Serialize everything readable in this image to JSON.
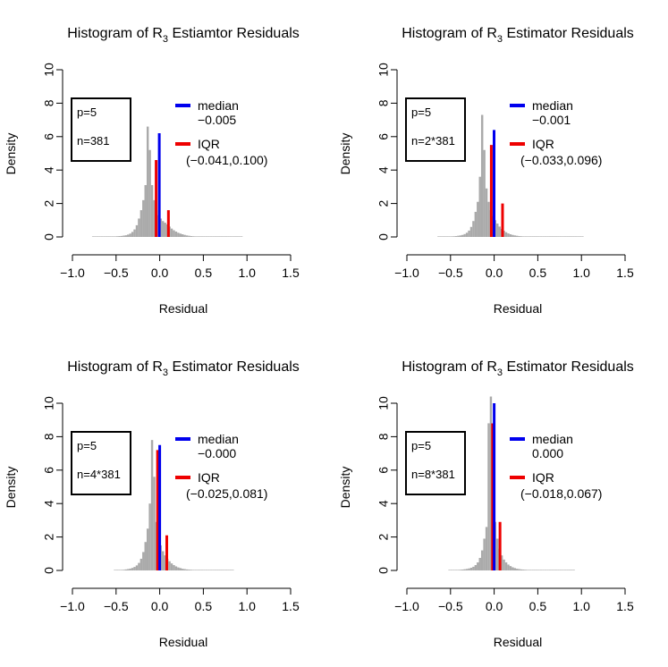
{
  "chart_data": [
    {
      "type": "histogram",
      "title_main": "Histogram of R",
      "title_sub": "3",
      "title_rest": " Estiamtor Residuals",
      "xlabel": "Residual",
      "ylabel": "Density",
      "xlim": [
        -1.0,
        1.5
      ],
      "ylim": [
        0,
        10
      ],
      "x_ticks": [
        "−1.0",
        "−0.5",
        "0.0",
        "0.5",
        "1.0",
        "1.5"
      ],
      "y_ticks": [
        "0",
        "2",
        "4",
        "6",
        "8",
        "10"
      ],
      "bar_color": "#aaaaaa",
      "bin_width": 0.025,
      "bins_start": -0.775,
      "densities": [
        0.01,
        0.01,
        0.01,
        0.01,
        0.01,
        0.01,
        0.01,
        0.02,
        0.02,
        0.02,
        0.03,
        0.04,
        0.05,
        0.06,
        0.08,
        0.1,
        0.14,
        0.2,
        0.3,
        0.45,
        0.7,
        1.1,
        1.6,
        2.2,
        3.1,
        6.6,
        5.2,
        3.1,
        2.2,
        1.6,
        1.3,
        1.1,
        0.95,
        0.85,
        0.75,
        0.62,
        0.5,
        0.4,
        0.32,
        0.25,
        0.2,
        0.16,
        0.12,
        0.09,
        0.07,
        0.05,
        0.04,
        0.03,
        0.02,
        0.02,
        0.01,
        0.01,
        0.01,
        0.01,
        0.01,
        0.01,
        0.01,
        0.01,
        0.01,
        0.01,
        0.01,
        0.01,
        0.01,
        0.01,
        0.01,
        0.01,
        0.01,
        0.01,
        0.01
      ],
      "median": {
        "value": -0.005,
        "height": 6.2,
        "color": "#0000ee"
      },
      "iqr": {
        "low": -0.041,
        "high": 0.1,
        "low_height": 4.6,
        "high_height": 1.6,
        "color": "#ee0000"
      },
      "box": {
        "p_text": "p=5",
        "n_text": "n=381"
      },
      "legend": {
        "median_label": "median",
        "median_value": "−0.005",
        "iqr_label": "IQR",
        "iqr_value": "(−0.041,0.100)"
      }
    },
    {
      "type": "histogram",
      "title_main": "Histogram of R",
      "title_sub": "3",
      "title_rest": " Estimator Residuals",
      "xlabel": "Residual",
      "ylabel": "Density",
      "xlim": [
        -1.0,
        1.5
      ],
      "ylim": [
        0,
        10
      ],
      "x_ticks": [
        "−1.0",
        "−0.5",
        "0.0",
        "0.5",
        "1.0",
        "1.5"
      ],
      "y_ticks": [
        "0",
        "2",
        "4",
        "6",
        "8",
        "10"
      ],
      "bar_color": "#aaaaaa",
      "bin_width": 0.025,
      "bins_start": -0.65,
      "densities": [
        0.01,
        0.01,
        0.01,
        0.01,
        0.02,
        0.02,
        0.03,
        0.04,
        0.05,
        0.07,
        0.09,
        0.12,
        0.17,
        0.25,
        0.38,
        0.6,
        0.95,
        1.5,
        2.1,
        3.6,
        7.3,
        5.2,
        2.9,
        2.1,
        1.6,
        1.25,
        1.0,
        0.8,
        0.62,
        0.48,
        0.37,
        0.28,
        0.21,
        0.16,
        0.12,
        0.09,
        0.07,
        0.05,
        0.04,
        0.03,
        0.02,
        0.02,
        0.02,
        0.01,
        0.01,
        0.01,
        0.01,
        0.01,
        0.01,
        0.01,
        0.01,
        0.01,
        0.01,
        0.01,
        0.01,
        0.01,
        0.01,
        0.01,
        0.01,
        0.01,
        0.01,
        0.01,
        0.01,
        0.01,
        0.01,
        0.01,
        0.01
      ],
      "median": {
        "value": -0.001,
        "height": 6.4,
        "color": "#0000ee"
      },
      "iqr": {
        "low": -0.033,
        "high": 0.096,
        "low_height": 5.5,
        "high_height": 2.0,
        "color": "#ee0000"
      },
      "box": {
        "p_text": "p=5",
        "n_text": "n=2*381"
      },
      "legend": {
        "median_label": "median",
        "median_value": "−0.001",
        "iqr_label": "IQR",
        "iqr_value": "(−0.033,0.096)"
      }
    },
    {
      "type": "histogram",
      "title_main": "Histogram of R",
      "title_sub": "3",
      "title_rest": " Estimator Residuals",
      "xlabel": "Residual",
      "ylabel": "Density",
      "xlim": [
        -1.0,
        1.5
      ],
      "ylim": [
        0,
        10
      ],
      "x_ticks": [
        "−1.0",
        "−0.5",
        "0.0",
        "0.5",
        "1.0",
        "1.5"
      ],
      "y_ticks": [
        "0",
        "2",
        "4",
        "6",
        "8",
        "10"
      ],
      "bar_color": "#aaaaaa",
      "bin_width": 0.025,
      "bins_start": -0.525,
      "densities": [
        0.01,
        0.01,
        0.02,
        0.03,
        0.04,
        0.06,
        0.08,
        0.11,
        0.15,
        0.21,
        0.3,
        0.45,
        0.7,
        1.1,
        1.7,
        2.5,
        4.0,
        7.8,
        5.6,
        2.9,
        2.0,
        1.5,
        1.15,
        0.9,
        0.7,
        0.55,
        0.42,
        0.32,
        0.24,
        0.18,
        0.14,
        0.1,
        0.08,
        0.06,
        0.05,
        0.04,
        0.03,
        0.02,
        0.02,
        0.02,
        0.01,
        0.01,
        0.01,
        0.01,
        0.01,
        0.01,
        0.01,
        0.01,
        0.01,
        0.01,
        0.01,
        0.01,
        0.01,
        0.01,
        0.01
      ],
      "median": {
        "value": 0.0,
        "height": 7.5,
        "color": "#0000ee"
      },
      "iqr": {
        "low": -0.025,
        "high": 0.081,
        "low_height": 7.2,
        "high_height": 2.1,
        "color": "#ee0000"
      },
      "box": {
        "p_text": "p=5",
        "n_text": "n=4*381"
      },
      "legend": {
        "median_label": "median",
        "median_value": "−0.000",
        "iqr_label": "IQR",
        "iqr_value": "(−0.025,0.081)"
      }
    },
    {
      "type": "histogram",
      "title_main": "Histogram of R",
      "title_sub": "3",
      "title_rest": " Estimator Residuals",
      "xlabel": "Residual",
      "ylabel": "Density",
      "xlim": [
        -1.0,
        1.5
      ],
      "ylim": [
        0,
        10
      ],
      "x_ticks": [
        "−1.0",
        "−0.5",
        "0.0",
        "0.5",
        "1.0",
        "1.5"
      ],
      "y_ticks": [
        "0",
        "2",
        "4",
        "6",
        "8",
        "10"
      ],
      "bar_color": "#aaaaaa",
      "bin_width": 0.025,
      "bins_start": -0.525,
      "densities": [
        0.01,
        0.01,
        0.02,
        0.02,
        0.03,
        0.04,
        0.05,
        0.07,
        0.09,
        0.12,
        0.16,
        0.22,
        0.32,
        0.48,
        0.75,
        1.2,
        1.9,
        2.6,
        8.8,
        10.4,
        4.3,
        2.9,
        1.9,
        1.3,
        0.9,
        0.65,
        0.48,
        0.35,
        0.26,
        0.19,
        0.14,
        0.1,
        0.08,
        0.06,
        0.05,
        0.04,
        0.03,
        0.02,
        0.02,
        0.02,
        0.01,
        0.01,
        0.01,
        0.01,
        0.01,
        0.01,
        0.01,
        0.01,
        0.01,
        0.01,
        0.01,
        0.01,
        0.01,
        0.01,
        0.01,
        0.01,
        0.01,
        0.01
      ],
      "median": {
        "value": 0.0,
        "height": 10.0,
        "color": "#0000ee"
      },
      "iqr": {
        "low": -0.018,
        "high": 0.067,
        "low_height": 8.8,
        "high_height": 2.9,
        "color": "#ee0000"
      },
      "box": {
        "p_text": "p=5",
        "n_text": "n=8*381"
      },
      "legend": {
        "median_label": "median",
        "median_value": "0.000",
        "iqr_label": "IQR",
        "iqr_value": "(−0.018,0.067)"
      }
    }
  ]
}
